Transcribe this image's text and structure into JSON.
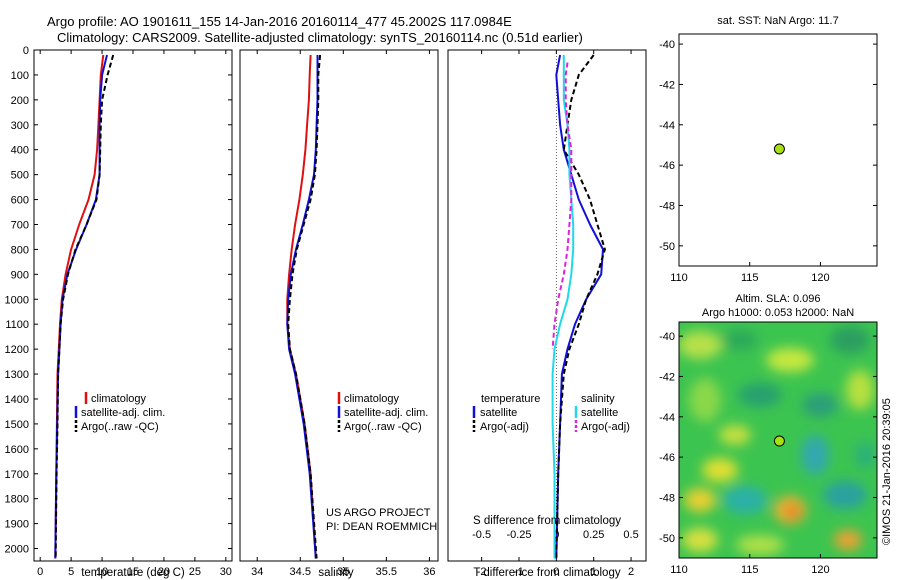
{
  "header": {
    "line1": "Argo profile: AO 1901611_155 14-Jan-2016 20160114_477 45.2002S 117.0984E",
    "line2": "Climatology: CARS2009. Satellite-adjusted climatology: synTS_20160114.nc (0.51d earlier)"
  },
  "colors": {
    "climatology": "#e01010",
    "satellite": "#1010d8",
    "argo": "#000000",
    "sal_satellite": "#20d8e8",
    "sal_argo": "#e020e0",
    "marker": "#a8e010"
  },
  "depth_axis": {
    "range": [
      0,
      2050
    ],
    "ticks": [
      "0",
      "100",
      "200",
      "300",
      "400",
      "500",
      "600",
      "700",
      "800",
      "900",
      "1000",
      "1100",
      "1200",
      "1300",
      "1400",
      "1500",
      "1600",
      "1700",
      "1800",
      "1900",
      "2000"
    ]
  },
  "chart_data": [
    {
      "type": "line",
      "id": "temperature",
      "xlabel": "temperature (deg C)",
      "xlim": [
        -1,
        31
      ],
      "ylim": [
        2050,
        0
      ],
      "xticks": [
        "0",
        "5",
        "10",
        "15",
        "20",
        "25",
        "30"
      ],
      "legend_items": [
        "climatology",
        "satellite-adj. clim.",
        "Argo(..raw -QC)"
      ],
      "series": [
        {
          "name": "climatology",
          "color": "#e01010",
          "style": "solid",
          "x": [
            10.2,
            9.8,
            9.6,
            9.4,
            9.2,
            8.8,
            7.8,
            6.3,
            5.0,
            4.1,
            3.5,
            3.2,
            3.0,
            2.8,
            2.7,
            2.6,
            2.5,
            2.45
          ],
          "y": [
            20,
            100,
            200,
            300,
            400,
            500,
            600,
            700,
            800,
            900,
            1000,
            1100,
            1200,
            1300,
            1500,
            1700,
            1900,
            2040
          ]
        },
        {
          "name": "satellite-adj. clim.",
          "color": "#1010d8",
          "style": "solid",
          "x": [
            10.8,
            10.0,
            9.7,
            9.6,
            9.6,
            9.6,
            9.0,
            7.5,
            5.8,
            4.4,
            3.6,
            3.3,
            3.1,
            2.9,
            2.75,
            2.6,
            2.5,
            2.45
          ],
          "y": [
            20,
            100,
            200,
            300,
            400,
            500,
            600,
            700,
            800,
            900,
            1000,
            1100,
            1200,
            1300,
            1500,
            1700,
            1900,
            2040
          ]
        },
        {
          "name": "Argo(..raw -QC)",
          "color": "#000000",
          "style": "dashed",
          "x": [
            11.8,
            10.9,
            10.0,
            9.8,
            9.7,
            9.6,
            9.1,
            7.5,
            5.7,
            4.5,
            3.7,
            3.3,
            3.1,
            2.9,
            2.8,
            2.65,
            2.55,
            2.5
          ],
          "y": [
            20,
            100,
            200,
            300,
            400,
            500,
            600,
            700,
            800,
            900,
            1000,
            1100,
            1200,
            1300,
            1500,
            1700,
            1900,
            2040
          ]
        }
      ]
    },
    {
      "type": "line",
      "id": "salinity",
      "xlabel": "salinity",
      "xlim": [
        33.8,
        36.1
      ],
      "ylim": [
        2050,
        0
      ],
      "xticks": [
        "34",
        "34.5",
        "35",
        "35.5",
        "36"
      ],
      "legend_items": [
        "climatology",
        "satellite-adj. clim.",
        "Argo(..raw -QC)"
      ],
      "series": [
        {
          "name": "climatology",
          "color": "#e01010",
          "style": "solid",
          "x": [
            34.62,
            34.61,
            34.6,
            34.58,
            34.56,
            34.53,
            34.49,
            34.44,
            34.4,
            34.37,
            34.35,
            34.35,
            34.38,
            34.45,
            34.55,
            34.62,
            34.68
          ],
          "y": [
            20,
            100,
            200,
            300,
            400,
            500,
            600,
            700,
            800,
            900,
            1000,
            1100,
            1200,
            1300,
            1500,
            1700,
            2040
          ]
        },
        {
          "name": "satellite-adj. clim.",
          "color": "#1010d8",
          "style": "solid",
          "x": [
            34.7,
            34.7,
            34.7,
            34.69,
            34.68,
            34.66,
            34.6,
            34.53,
            34.45,
            34.39,
            34.36,
            34.35,
            34.37,
            34.44,
            34.54,
            34.61,
            34.68
          ],
          "y": [
            20,
            100,
            200,
            300,
            400,
            500,
            600,
            700,
            800,
            900,
            1000,
            1100,
            1200,
            1300,
            1500,
            1700,
            2040
          ]
        },
        {
          "name": "Argo(..raw -QC)",
          "color": "#000000",
          "style": "dashed",
          "x": [
            34.73,
            34.71,
            34.71,
            34.7,
            34.69,
            34.67,
            34.62,
            34.54,
            34.46,
            34.41,
            34.38,
            34.36,
            34.38,
            34.45,
            34.55,
            34.62,
            34.69
          ],
          "y": [
            20,
            100,
            200,
            300,
            400,
            500,
            600,
            700,
            800,
            900,
            1000,
            1100,
            1200,
            1300,
            1500,
            1700,
            2040
          ]
        }
      ]
    },
    {
      "type": "line",
      "id": "difference",
      "xlabel": "T difference from climatology",
      "xlabel_top": "S difference from climatology",
      "xlim": [
        -2.9,
        2.4
      ],
      "ylim": [
        2050,
        0
      ],
      "xticks": [
        "-2",
        "-1",
        "0",
        "1",
        "2"
      ],
      "sticks": [
        "-0.5",
        "-0.25",
        "0",
        "0.25",
        "0.5"
      ],
      "legend_headers": [
        "temperature",
        "salinity"
      ],
      "legend_items": [
        "satellite",
        "Argo(-adj)",
        "satellite",
        "Argo(-adj)"
      ],
      "series": [
        {
          "name": "satellite",
          "color": "#1010d8",
          "style": "solid",
          "x": [
            0.1,
            0.0,
            0.05,
            0.1,
            0.2,
            0.4,
            0.6,
            0.9,
            1.25,
            1.2,
            0.8,
            0.5,
            0.3,
            0.15,
            0.1,
            0.05,
            0.0
          ],
          "y": [
            20,
            100,
            200,
            300,
            400,
            500,
            600,
            700,
            800,
            900,
            1000,
            1100,
            1200,
            1300,
            1500,
            1700,
            2040
          ]
        },
        {
          "name": "Argo(-adj)",
          "color": "#000000",
          "style": "dashed",
          "x": [
            1.0,
            0.6,
            0.4,
            0.3,
            0.2,
            0.6,
            0.9,
            1.1,
            1.3,
            1.1,
            0.8,
            0.6,
            0.35,
            0.2,
            0.1,
            0.05,
            0.0
          ],
          "y": [
            20,
            100,
            200,
            300,
            400,
            500,
            600,
            700,
            800,
            900,
            1000,
            1100,
            1200,
            1300,
            1500,
            1700,
            2040
          ]
        },
        {
          "name": "satellite",
          "color": "#20d8e8",
          "style": "solid",
          "x": [
            0.2,
            0.2,
            0.2,
            0.3,
            0.35,
            0.35,
            0.4,
            0.45,
            0.45,
            0.4,
            0.3,
            0.1,
            -0.05,
            -0.1,
            -0.1,
            -0.05,
            -0.05
          ],
          "y": [
            20,
            100,
            200,
            300,
            400,
            500,
            600,
            700,
            800,
            900,
            1000,
            1100,
            1200,
            1300,
            1500,
            1700,
            2040
          ]
        },
        {
          "name": "Argo(-adj)",
          "color": "#e020e0",
          "style": "dashed",
          "x": [
            0.3,
            0.25,
            0.25,
            0.3,
            0.4,
            0.4,
            0.4,
            0.35,
            0.3,
            0.2,
            0.05,
            -0.05,
            -0.1
          ],
          "y": [
            50,
            100,
            200,
            300,
            400,
            500,
            600,
            700,
            800,
            900,
            1000,
            1100,
            1200
          ]
        }
      ]
    },
    {
      "type": "scatter",
      "id": "sst-map",
      "title": "sat. SST: NaN Argo: 11.7",
      "xlim": [
        110,
        124
      ],
      "ylim": [
        -51,
        -39.5
      ],
      "xticks": [
        "110",
        "115",
        "120"
      ],
      "yticks": [
        "-40",
        "-42",
        "-44",
        "-46",
        "-48",
        "-50"
      ],
      "x": [
        117.0984
      ],
      "y": [
        -45.2002
      ]
    },
    {
      "type": "heatmap",
      "id": "sla-map",
      "title": "Altim. SLA: 0.096",
      "subtitle": "Argo h1000: 0.053 h2000: NaN",
      "xlim": [
        110,
        124
      ],
      "ylim": [
        -51,
        -39.3
      ],
      "xticks": [
        "110",
        "115",
        "120"
      ],
      "yticks": [
        "-40",
        "-42",
        "-44",
        "-46",
        "-48",
        "-50"
      ],
      "x": [
        117.0984
      ],
      "y": [
        -45.2002
      ]
    }
  ],
  "footer": {
    "credit": "US ARGO PROJECT",
    "pi": "PI: DEAN ROEMMICH",
    "timestamp": "©IMOS 21-Jan-2016 20:39:05"
  }
}
